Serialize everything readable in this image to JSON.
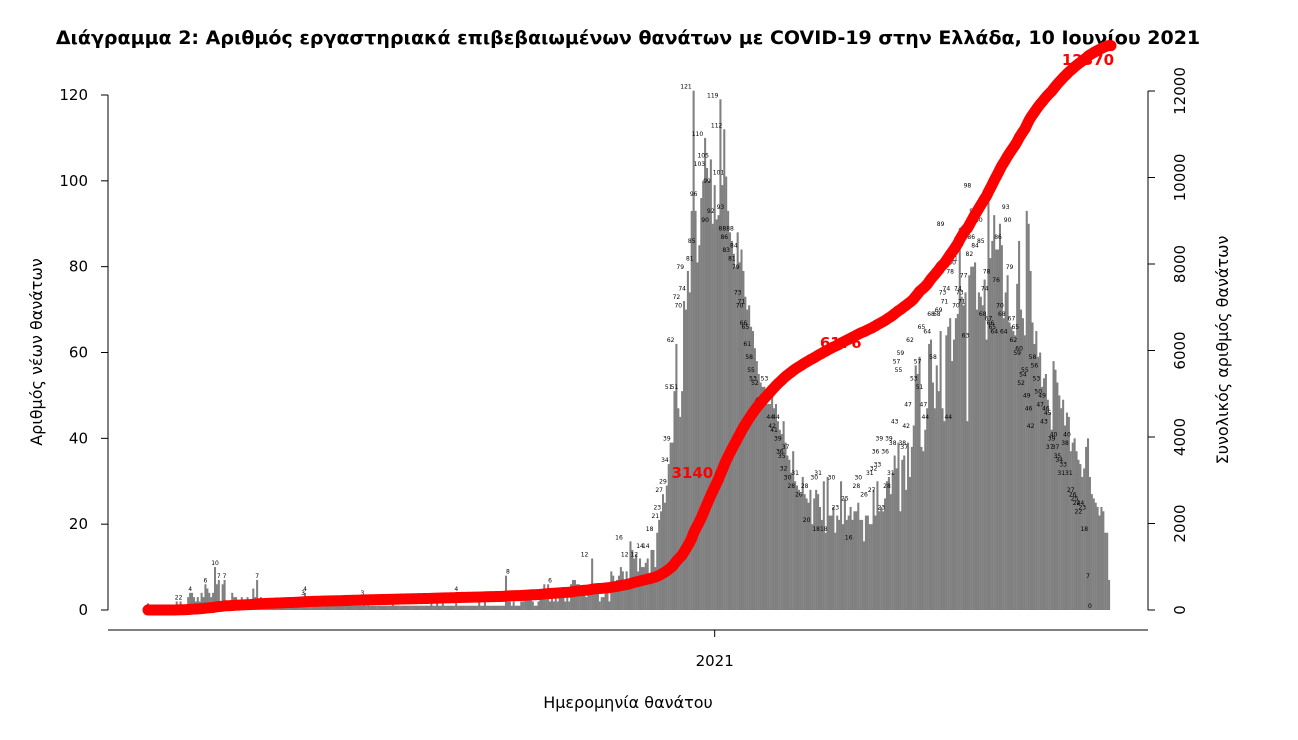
{
  "chart_data": {
    "type": "bar",
    "title": "Διάγραμμα 2: Αριθμός εργαστηριακά επιβεβαιωμένων θανάτων με COVID-19 στην Ελλάδα, 10 Ιουνίου 2021",
    "xlabel": "Ημερομηνία θανάτου",
    "ylabel_left": "Αριθμός νέων θανάτων",
    "ylabel_right": "Συνολικός αριθμός θανάτων",
    "x_tick_labels": [
      "2021"
    ],
    "x_tick_day_index": [
      296
    ],
    "ylim_left": [
      0,
      120
    ],
    "yticks_left": [
      0,
      20,
      40,
      60,
      80,
      100,
      120
    ],
    "ylim_right": [
      0,
      12000
    ],
    "yticks_right": [
      0,
      2000,
      4000,
      6000,
      8000,
      10000,
      12000
    ],
    "grid": false,
    "colors": {
      "bars": "#808080",
      "cumulative_line": "#ff0000"
    },
    "daily_deaths": [
      0,
      0,
      0,
      0,
      0,
      0,
      0,
      0,
      0,
      0,
      0,
      0,
      0,
      1,
      0,
      2,
      1,
      2,
      0,
      1,
      1,
      3,
      4,
      4,
      3,
      2,
      3,
      2,
      4,
      3,
      6,
      5,
      4,
      3,
      4,
      10,
      6,
      7,
      2,
      6,
      7,
      2,
      1,
      2,
      4,
      3,
      3,
      2,
      1,
      3,
      2,
      1,
      3,
      2,
      2,
      5,
      3,
      7,
      2,
      3,
      2,
      1,
      2,
      1,
      2,
      2,
      2,
      2,
      2,
      1,
      2,
      2,
      2,
      1,
      1,
      2,
      1,
      3,
      2,
      2,
      2,
      3,
      4,
      2,
      2,
      3,
      1,
      1,
      1,
      2,
      1,
      2,
      1,
      1,
      1,
      1,
      1,
      1,
      1,
      1,
      1,
      1,
      2,
      1,
      1,
      2,
      1,
      1,
      1,
      1,
      1,
      1,
      1,
      3,
      1,
      2,
      1,
      1,
      1,
      1,
      1,
      1,
      1,
      1,
      1,
      1,
      1,
      1,
      2,
      1,
      1,
      1,
      1,
      1,
      1,
      1,
      1,
      1,
      1,
      1,
      1,
      1,
      1,
      1,
      1,
      1,
      1,
      1,
      2,
      1,
      1,
      2,
      1,
      1,
      2,
      1,
      1,
      1,
      1,
      1,
      1,
      4,
      1,
      1,
      1,
      1,
      1,
      1,
      1,
      1,
      1,
      1,
      1,
      2,
      1,
      1,
      2,
      1,
      1,
      1,
      1,
      1,
      1,
      1,
      1,
      1,
      1,
      8,
      2,
      2,
      1,
      2,
      1,
      1,
      1,
      2,
      2,
      3,
      4,
      3,
      4,
      2,
      1,
      1,
      2,
      4,
      4,
      6,
      3,
      6,
      2,
      4,
      2,
      3,
      2,
      3,
      4,
      4,
      2,
      3,
      2,
      6,
      7,
      7,
      6,
      6,
      5,
      5,
      4,
      3,
      4,
      5,
      12,
      6,
      5,
      4,
      2,
      3,
      3,
      6,
      5,
      2,
      9,
      8,
      6,
      7,
      8,
      10,
      9,
      7,
      9,
      6,
      16,
      14,
      12,
      13,
      9,
      12,
      10,
      10,
      11,
      12,
      8,
      14,
      14,
      10,
      18,
      21,
      23,
      27,
      25,
      29,
      34,
      39,
      39,
      51,
      62,
      47,
      45,
      51,
      72,
      70,
      79,
      74,
      93,
      121,
      93,
      81,
      85,
      96,
      100,
      110,
      103,
      100,
      105,
      90,
      99,
      91,
      92,
      119,
      99,
      112,
      101,
      93,
      88,
      86,
      83,
      80,
      88,
      81,
      84,
      79,
      73,
      70,
      71,
      66,
      65,
      61,
      58,
      55,
      53,
      52,
      52,
      48,
      48,
      48,
      53,
      47,
      48,
      44,
      42,
      41,
      44,
      39,
      36,
      35,
      32,
      37,
      30,
      29,
      28,
      27,
      31,
      27,
      26,
      25,
      28,
      20,
      26,
      28,
      27,
      24,
      21,
      30,
      18,
      31,
      22,
      22,
      24,
      18,
      22,
      21,
      30,
      20,
      26,
      21,
      22,
      24,
      21,
      23,
      23,
      25,
      21,
      21,
      16,
      22,
      22,
      20,
      20,
      28,
      22,
      30,
      23,
      24,
      23,
      26,
      30,
      31,
      27,
      32,
      36,
      33,
      39,
      23,
      35,
      36,
      28,
      39,
      31,
      38,
      43,
      57,
      55,
      59,
      38,
      37,
      42,
      47,
      62,
      63,
      53,
      47,
      57,
      51,
      65,
      47,
      44,
      64,
      66,
      68,
      58,
      63,
      68,
      69,
      89,
      73,
      71,
      74,
      44,
      78,
      80,
      80,
      81,
      70,
      74,
      73,
      71,
      77,
      63,
      98,
      82,
      86,
      92,
      84,
      84,
      90,
      85,
      68,
      74,
      78,
      67,
      66,
      65,
      64,
      76,
      86,
      70,
      68,
      64,
      93,
      90,
      79,
      67,
      62,
      65,
      59,
      60,
      52,
      54,
      55,
      49,
      46,
      42,
      58,
      56,
      53,
      50,
      47,
      49,
      43,
      46,
      45,
      37,
      39,
      40,
      37,
      35,
      34,
      31,
      33,
      38,
      40,
      31,
      27,
      26,
      25,
      24,
      22,
      24,
      23,
      18,
      18,
      7,
      0
    ],
    "bar_value_labels": [
      {
        "day": 0,
        "value": 0
      },
      {
        "day": 15,
        "value": 2
      },
      {
        "day": 17,
        "value": 2
      },
      {
        "day": 22,
        "value": 4
      },
      {
        "day": 30,
        "value": 6
      },
      {
        "day": 35,
        "value": 10
      },
      {
        "day": 37,
        "value": 7
      },
      {
        "day": 40,
        "value": 7
      },
      {
        "day": 57,
        "value": 7
      },
      {
        "day": 81,
        "value": 3
      },
      {
        "day": 82,
        "value": 4
      },
      {
        "day": 112,
        "value": 3
      },
      {
        "day": 124,
        "value": 2
      },
      {
        "day": 161,
        "value": 4
      },
      {
        "day": 188,
        "value": 8
      },
      {
        "day": 210,
        "value": 6
      },
      {
        "day": 228,
        "value": 12
      },
      {
        "day": 246,
        "value": 16
      },
      {
        "day": 249,
        "value": 12
      },
      {
        "day": 254,
        "value": 12
      },
      {
        "day": 257,
        "value": 14
      },
      {
        "day": 260,
        "value": 14
      },
      {
        "day": 262,
        "value": 18
      },
      {
        "day": 265,
        "value": 21
      },
      {
        "day": 266,
        "value": 23
      },
      {
        "day": 267,
        "value": 27
      },
      {
        "day": 269,
        "value": 29
      },
      {
        "day": 270,
        "value": 34
      },
      {
        "day": 271,
        "value": 39
      },
      {
        "day": 272,
        "value": 51
      },
      {
        "day": 273,
        "value": 62
      },
      {
        "day": 275,
        "value": 51
      },
      {
        "day": 276,
        "value": 72
      },
      {
        "day": 277,
        "value": 70
      },
      {
        "day": 278,
        "value": 79
      },
      {
        "day": 279,
        "value": 74
      },
      {
        "day": 281,
        "value": 121
      },
      {
        "day": 283,
        "value": 81
      },
      {
        "day": 284,
        "value": 85
      },
      {
        "day": 285,
        "value": 96
      },
      {
        "day": 287,
        "value": 110
      },
      {
        "day": 288,
        "value": 103
      },
      {
        "day": 290,
        "value": 105
      },
      {
        "day": 291,
        "value": 90
      },
      {
        "day": 292,
        "value": 99
      },
      {
        "day": 294,
        "value": 92
      },
      {
        "day": 295,
        "value": 119
      },
      {
        "day": 297,
        "value": 112
      },
      {
        "day": 298,
        "value": 101
      },
      {
        "day": 299,
        "value": 93
      },
      {
        "day": 300,
        "value": 88
      },
      {
        "day": 301,
        "value": 86
      },
      {
        "day": 302,
        "value": 83
      },
      {
        "day": 304,
        "value": 88
      },
      {
        "day": 305,
        "value": 81
      },
      {
        "day": 306,
        "value": 84
      },
      {
        "day": 307,
        "value": 79
      },
      {
        "day": 308,
        "value": 73
      },
      {
        "day": 309,
        "value": 70
      },
      {
        "day": 310,
        "value": 71
      },
      {
        "day": 311,
        "value": 66
      },
      {
        "day": 312,
        "value": 65
      },
      {
        "day": 313,
        "value": 61
      },
      {
        "day": 314,
        "value": 58
      },
      {
        "day": 315,
        "value": 55
      },
      {
        "day": 316,
        "value": 53
      },
      {
        "day": 317,
        "value": 52
      },
      {
        "day": 319,
        "value": 48
      },
      {
        "day": 322,
        "value": 53
      },
      {
        "day": 325,
        "value": 44
      },
      {
        "day": 326,
        "value": 42
      },
      {
        "day": 327,
        "value": 41
      },
      {
        "day": 328,
        "value": 44
      },
      {
        "day": 329,
        "value": 39
      },
      {
        "day": 330,
        "value": 36
      },
      {
        "day": 331,
        "value": 35
      },
      {
        "day": 332,
        "value": 32
      },
      {
        "day": 333,
        "value": 37
      },
      {
        "day": 334,
        "value": 30
      },
      {
        "day": 336,
        "value": 28
      },
      {
        "day": 338,
        "value": 31
      },
      {
        "day": 340,
        "value": 26
      },
      {
        "day": 343,
        "value": 28
      },
      {
        "day": 344,
        "value": 20
      },
      {
        "day": 348,
        "value": 30
      },
      {
        "day": 349,
        "value": 18
      },
      {
        "day": 350,
        "value": 31
      },
      {
        "day": 353,
        "value": 18
      },
      {
        "day": 357,
        "value": 30
      },
      {
        "day": 359,
        "value": 23
      },
      {
        "day": 364,
        "value": 25
      },
      {
        "day": 366,
        "value": 16
      },
      {
        "day": 370,
        "value": 28
      },
      {
        "day": 371,
        "value": 30
      },
      {
        "day": 374,
        "value": 26
      },
      {
        "day": 377,
        "value": 31
      },
      {
        "day": 378,
        "value": 27
      },
      {
        "day": 379,
        "value": 32
      },
      {
        "day": 380,
        "value": 36
      },
      {
        "day": 381,
        "value": 33
      },
      {
        "day": 382,
        "value": 39
      },
      {
        "day": 383,
        "value": 23
      },
      {
        "day": 385,
        "value": 36
      },
      {
        "day": 386,
        "value": 28
      },
      {
        "day": 387,
        "value": 39
      },
      {
        "day": 388,
        "value": 31
      },
      {
        "day": 389,
        "value": 38
      },
      {
        "day": 390,
        "value": 43
      },
      {
        "day": 391,
        "value": 57
      },
      {
        "day": 392,
        "value": 55
      },
      {
        "day": 393,
        "value": 59
      },
      {
        "day": 394,
        "value": 38
      },
      {
        "day": 395,
        "value": 37
      },
      {
        "day": 396,
        "value": 42
      },
      {
        "day": 397,
        "value": 47
      },
      {
        "day": 398,
        "value": 62
      },
      {
        "day": 400,
        "value": 53
      },
      {
        "day": 402,
        "value": 57
      },
      {
        "day": 403,
        "value": 51
      },
      {
        "day": 404,
        "value": 65
      },
      {
        "day": 405,
        "value": 47
      },
      {
        "day": 406,
        "value": 44
      },
      {
        "day": 407,
        "value": 64
      },
      {
        "day": 409,
        "value": 68
      },
      {
        "day": 410,
        "value": 58
      },
      {
        "day": 412,
        "value": 68
      },
      {
        "day": 413,
        "value": 69
      },
      {
        "day": 414,
        "value": 89
      },
      {
        "day": 415,
        "value": 73
      },
      {
        "day": 416,
        "value": 71
      },
      {
        "day": 417,
        "value": 74
      },
      {
        "day": 418,
        "value": 44
      },
      {
        "day": 419,
        "value": 78
      },
      {
        "day": 420,
        "value": 80
      },
      {
        "day": 421,
        "value": 81
      },
      {
        "day": 422,
        "value": 70
      },
      {
        "day": 423,
        "value": 74
      },
      {
        "day": 424,
        "value": 73
      },
      {
        "day": 425,
        "value": 71
      },
      {
        "day": 426,
        "value": 77
      },
      {
        "day": 427,
        "value": 63
      },
      {
        "day": 428,
        "value": 98
      },
      {
        "day": 429,
        "value": 82
      },
      {
        "day": 430,
        "value": 86
      },
      {
        "day": 431,
        "value": 92
      },
      {
        "day": 432,
        "value": 84
      },
      {
        "day": 434,
        "value": 90
      },
      {
        "day": 435,
        "value": 85
      },
      {
        "day": 436,
        "value": 68
      },
      {
        "day": 437,
        "value": 74
      },
      {
        "day": 438,
        "value": 78
      },
      {
        "day": 439,
        "value": 67
      },
      {
        "day": 440,
        "value": 66
      },
      {
        "day": 441,
        "value": 65
      },
      {
        "day": 442,
        "value": 64
      },
      {
        "day": 443,
        "value": 76
      },
      {
        "day": 444,
        "value": 86
      },
      {
        "day": 445,
        "value": 70
      },
      {
        "day": 446,
        "value": 68
      },
      {
        "day": 447,
        "value": 64
      },
      {
        "day": 448,
        "value": 93
      },
      {
        "day": 449,
        "value": 90
      },
      {
        "day": 450,
        "value": 79
      },
      {
        "day": 451,
        "value": 67
      },
      {
        "day": 452,
        "value": 62
      },
      {
        "day": 453,
        "value": 65
      },
      {
        "day": 454,
        "value": 59
      },
      {
        "day": 455,
        "value": 60
      },
      {
        "day": 456,
        "value": 52
      },
      {
        "day": 457,
        "value": 54
      },
      {
        "day": 458,
        "value": 55
      },
      {
        "day": 459,
        "value": 49
      },
      {
        "day": 460,
        "value": 46
      },
      {
        "day": 461,
        "value": 42
      },
      {
        "day": 462,
        "value": 58
      },
      {
        "day": 463,
        "value": 56
      },
      {
        "day": 464,
        "value": 53
      },
      {
        "day": 465,
        "value": 50
      },
      {
        "day": 466,
        "value": 47
      },
      {
        "day": 467,
        "value": 49
      },
      {
        "day": 468,
        "value": 43
      },
      {
        "day": 469,
        "value": 46
      },
      {
        "day": 470,
        "value": 45
      },
      {
        "day": 471,
        "value": 37
      },
      {
        "day": 472,
        "value": 39
      },
      {
        "day": 473,
        "value": 40
      },
      {
        "day": 474,
        "value": 37
      },
      {
        "day": 475,
        "value": 35
      },
      {
        "day": 476,
        "value": 34
      },
      {
        "day": 477,
        "value": 31
      },
      {
        "day": 478,
        "value": 33
      },
      {
        "day": 479,
        "value": 38
      },
      {
        "day": 480,
        "value": 40
      },
      {
        "day": 481,
        "value": 31
      },
      {
        "day": 482,
        "value": 27
      },
      {
        "day": 483,
        "value": 26
      },
      {
        "day": 484,
        "value": 25
      },
      {
        "day": 485,
        "value": 24
      },
      {
        "day": 486,
        "value": 22
      },
      {
        "day": 487,
        "value": 24
      },
      {
        "day": 488,
        "value": 23
      },
      {
        "day": 489,
        "value": 18
      },
      {
        "day": 491,
        "value": 7
      },
      {
        "day": 492,
        "value": 0
      }
    ],
    "cumulative_annotations": [
      {
        "day": 300,
        "value": 3140,
        "label": "3140"
      },
      {
        "day": 366,
        "value": 6176,
        "label": "6176"
      },
      {
        "day": 492,
        "value": 12370,
        "label": "12370"
      }
    ]
  }
}
